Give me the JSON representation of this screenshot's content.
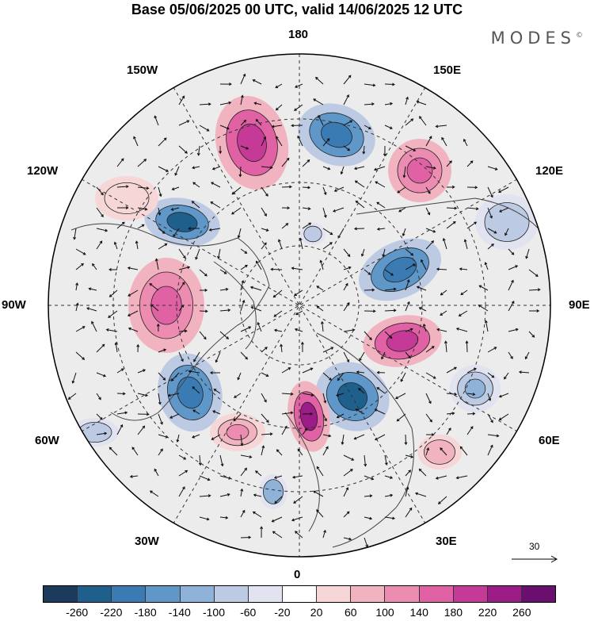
{
  "title": "Base 05/06/2025 00 UTC, valid 14/06/2025 12 UTC",
  "brand": "MODES",
  "brand_mark": "©",
  "longitude_labels": {
    "top": "180",
    "bottom": "0",
    "left": "90W",
    "right": "90E",
    "upper_left_1": "150W",
    "upper_left_2": "120W",
    "upper_right_1": "150E",
    "upper_right_2": "120E",
    "lower_left_1": "60W",
    "lower_left_2": "30W",
    "lower_right_1": "60E",
    "lower_right_2": "30E"
  },
  "reference_vector": {
    "label": "30"
  },
  "colorbar": {
    "colors": [
      "#1b3a5c",
      "#1f5f8b",
      "#3b7bb3",
      "#5e97c8",
      "#8fb2d8",
      "#bccbe3",
      "#e2e3f0",
      "#ffffff",
      "#f6d6d6",
      "#f2b3c0",
      "#ec8cb1",
      "#e062a5",
      "#c43a96",
      "#9b1b87",
      "#6a0f70"
    ],
    "tick_labels": [
      "-260",
      "-220",
      "-180",
      "-140",
      "-100",
      "-60",
      "-20",
      "20",
      "60",
      "100",
      "140",
      "180",
      "220",
      "260"
    ]
  }
}
